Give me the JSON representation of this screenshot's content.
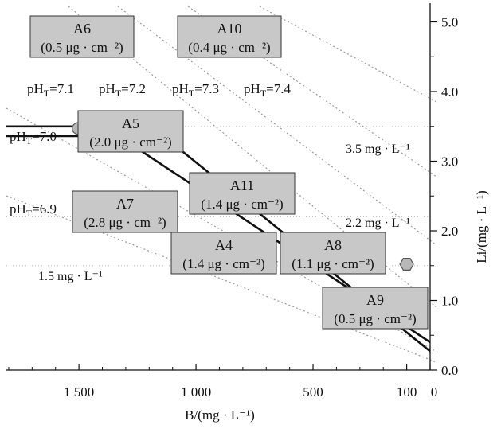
{
  "chart_data": {
    "type": "scatter",
    "xlabel": "B/(mg · L⁻¹)",
    "ylabel": "Li/(mg · L⁻¹)",
    "x_reversed": true,
    "xlim": [
      0,
      1810
    ],
    "ylim": [
      0,
      5.2
    ],
    "x_ticks": [
      {
        "value": 1500,
        "label": "1 500"
      },
      {
        "value": 1000,
        "label": "1 000"
      },
      {
        "value": 500,
        "label": "500"
      },
      {
        "value": 100,
        "label": "100"
      },
      {
        "value": 0,
        "label": "0"
      }
    ],
    "y_ticks": [
      {
        "value": 0,
        "label": "0.0"
      },
      {
        "value": 1,
        "label": "1.0"
      },
      {
        "value": 2,
        "label": "2.0"
      },
      {
        "value": 3,
        "label": "3.0"
      },
      {
        "value": 4,
        "label": "4.0"
      },
      {
        "value": 5,
        "label": "5.0"
      }
    ],
    "points": [
      {
        "name": "A6",
        "sub": "(0.5 μg · cm⁻²)",
        "x": 1500,
        "y": 4.98
      },
      {
        "name": "A10",
        "sub": "(0.4 μg · cm⁻²)",
        "x": 870,
        "y": 4.98
      },
      {
        "name": "A5",
        "sub": "(2.0 μg · cm⁻²)",
        "x": 1500,
        "y": 3.47
      },
      {
        "name": "A7",
        "sub": "(2.8 μg · cm⁻²)",
        "x": 1500,
        "y": 2.2
      },
      {
        "name": "A11",
        "sub": "(1.4 μg · cm⁻²)",
        "x": 860,
        "y": 2.42
      },
      {
        "name": "A4",
        "sub": "(1.4 μg · cm⁻²)",
        "x": 860,
        "y": 1.52
      },
      {
        "name": "A8",
        "sub": "(1.1 μg · cm⁻²)",
        "x": 500,
        "y": 1.52
      },
      {
        "name": "A9",
        "sub": "(0.5 μg · cm⁻²)",
        "x": 100,
        "y": 1.52
      }
    ],
    "boundary_lines": [
      {
        "pts": [
          [
            1810,
            3.5
          ],
          [
            1190,
            3.5
          ],
          [
            0,
            0.27
          ]
        ]
      },
      {
        "pts": [
          [
            1810,
            3.36
          ],
          [
            1330,
            3.36
          ],
          [
            0,
            0.4
          ]
        ]
      }
    ],
    "reference_lines": [
      {
        "label": "3.5 mg · L⁻¹",
        "y": 3.5
      },
      {
        "label": "2.2 mg · L⁻¹",
        "y": 2.2
      },
      {
        "label": "1.5 mg · L⁻¹",
        "y": 1.5
      }
    ],
    "ph_lines": [
      {
        "label": "pHT=7.0"
      },
      {
        "label": "pHT=6.9"
      },
      {
        "label": "pHT=7.1"
      },
      {
        "label": "pHT=7.2"
      },
      {
        "label": "pHT=7.3"
      },
      {
        "label": "pHT=7.4"
      }
    ]
  }
}
